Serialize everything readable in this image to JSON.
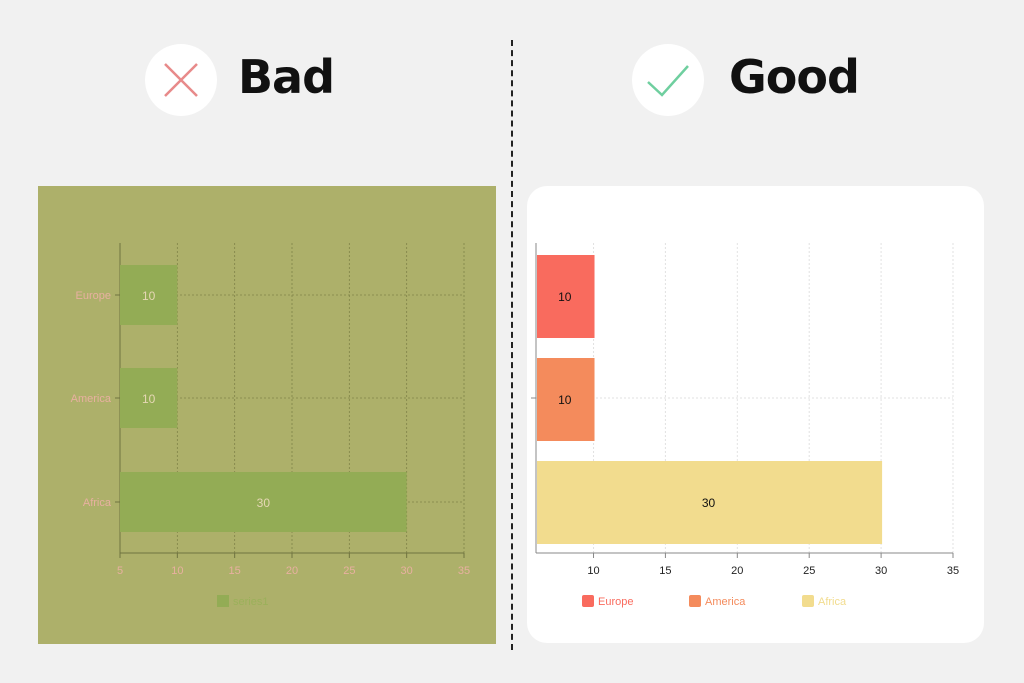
{
  "bad": {
    "heading": "Bad",
    "icon": "cross-icon",
    "icon_color": "#e88a8a"
  },
  "good": {
    "heading": "Good",
    "icon": "check-icon",
    "icon_color": "#6fcf9f"
  },
  "chart_data": [
    {
      "type": "bar",
      "orientation": "horizontal",
      "categories": [
        "Europe",
        "America",
        "Africa"
      ],
      "series": [
        {
          "name": "series1",
          "values": [
            10,
            10,
            30
          ],
          "color": "#93ac55"
        }
      ],
      "data_labels": [
        "10",
        "10",
        "30"
      ],
      "xlim": [
        5,
        35
      ],
      "xticks": [
        "5",
        "10",
        "15",
        "20",
        "25",
        "30",
        "35"
      ],
      "grid": true,
      "legend": "bottom",
      "background": "#adb06a",
      "label_color": "#e8b0a0"
    },
    {
      "type": "bar",
      "orientation": "horizontal",
      "categories": [
        "Europe",
        "America",
        "Africa"
      ],
      "values": [
        10,
        10,
        30
      ],
      "colors": [
        "#f96b5e",
        "#f48b5c",
        "#f2dc8e"
      ],
      "data_labels": [
        "10",
        "10",
        "30"
      ],
      "xlim": [
        6,
        35
      ],
      "xticks": [
        "10",
        "15",
        "20",
        "25",
        "30",
        "35"
      ],
      "grid": true,
      "legend": "bottom",
      "legend_entries": [
        "Europe",
        "America",
        "Africa"
      ],
      "background": "#ffffff"
    }
  ]
}
